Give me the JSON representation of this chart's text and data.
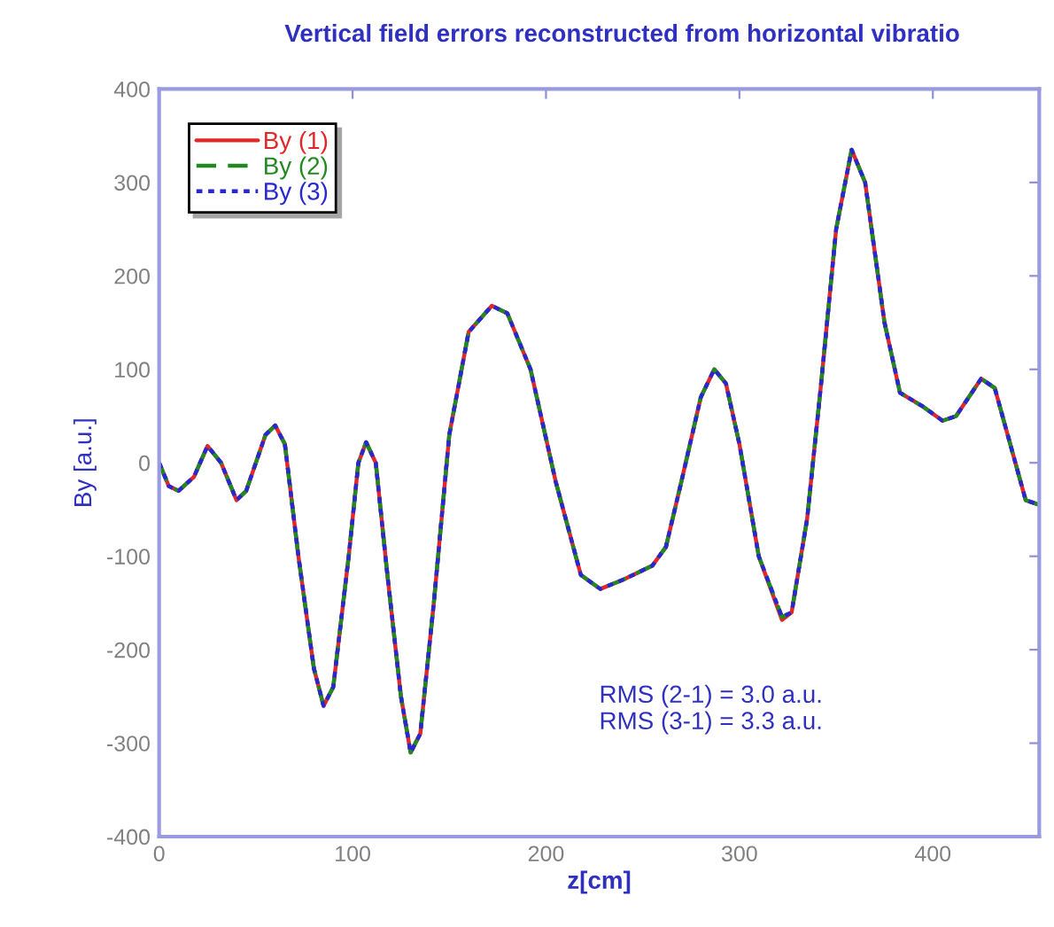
{
  "chart_data": {
    "type": "line",
    "title": "Vertical field errors reconstructed from horizontal vibratio",
    "xlabel": "z[cm]",
    "ylabel": "By [a.u.]",
    "x": [
      0,
      5,
      10,
      18,
      25,
      32,
      40,
      45,
      55,
      60,
      65,
      72,
      80,
      85,
      90,
      98,
      103,
      107,
      112,
      118,
      125,
      130,
      135,
      142,
      150,
      160,
      172,
      180,
      192,
      205,
      218,
      228,
      240,
      255,
      262,
      270,
      280,
      287,
      293,
      300,
      310,
      322,
      327,
      335,
      342,
      350,
      358,
      365,
      375,
      383,
      395,
      405,
      412,
      425,
      432,
      440,
      448,
      455
    ],
    "series": [
      {
        "name": "By (1)",
        "color": "#e02828",
        "line_style": "solid",
        "values": [
          0,
          -25,
          -30,
          -15,
          18,
          0,
          -40,
          -30,
          30,
          40,
          20,
          -100,
          -220,
          -260,
          -240,
          -100,
          0,
          22,
          0,
          -120,
          -250,
          -310,
          -290,
          -150,
          30,
          140,
          168,
          160,
          100,
          -20,
          -120,
          -135,
          -125,
          -110,
          -90,
          -20,
          70,
          100,
          85,
          20,
          -100,
          -168,
          -160,
          -60,
          80,
          250,
          335,
          300,
          150,
          75,
          60,
          45,
          50,
          90,
          80,
          20,
          -40,
          -45
        ]
      },
      {
        "name": "By (2)",
        "color": "#208a20",
        "line_style": "dashed",
        "values": [
          0,
          -25,
          -30,
          -15,
          18,
          0,
          -40,
          -30,
          30,
          40,
          20,
          -100,
          -220,
          -260,
          -240,
          -100,
          0,
          22,
          0,
          -120,
          -250,
          -310,
          -290,
          -150,
          30,
          140,
          168,
          160,
          100,
          -20,
          -120,
          -135,
          -125,
          -110,
          -90,
          -20,
          70,
          100,
          85,
          20,
          -100,
          -165,
          -160,
          -60,
          80,
          250,
          335,
          300,
          150,
          75,
          60,
          45,
          50,
          90,
          80,
          20,
          -40,
          -45
        ]
      },
      {
        "name": "By (3)",
        "color": "#2828d0",
        "line_style": "dotted",
        "values": [
          0,
          -25,
          -30,
          -15,
          18,
          0,
          -40,
          -30,
          30,
          40,
          20,
          -100,
          -220,
          -260,
          -240,
          -100,
          0,
          22,
          0,
          -120,
          -250,
          -310,
          -290,
          -150,
          30,
          140,
          168,
          160,
          100,
          -20,
          -120,
          -135,
          -125,
          -110,
          -90,
          -20,
          70,
          100,
          85,
          20,
          -100,
          -165,
          -160,
          -60,
          80,
          250,
          335,
          300,
          150,
          75,
          60,
          45,
          50,
          90,
          80,
          20,
          -40,
          -45
        ]
      }
    ],
    "xlim": [
      0,
      455
    ],
    "xticks": [
      0,
      100,
      200,
      300,
      400
    ],
    "ylim": [
      -400,
      400
    ],
    "yticks": [
      -400,
      -300,
      -200,
      -100,
      0,
      100,
      200,
      300,
      400
    ],
    "annotations": [
      "RMS (2-1) = 3.0 a.u.\nRMS (3-1) = 3.3 a.u."
    ],
    "legend": "top left",
    "grid": false,
    "marker": "none"
  }
}
